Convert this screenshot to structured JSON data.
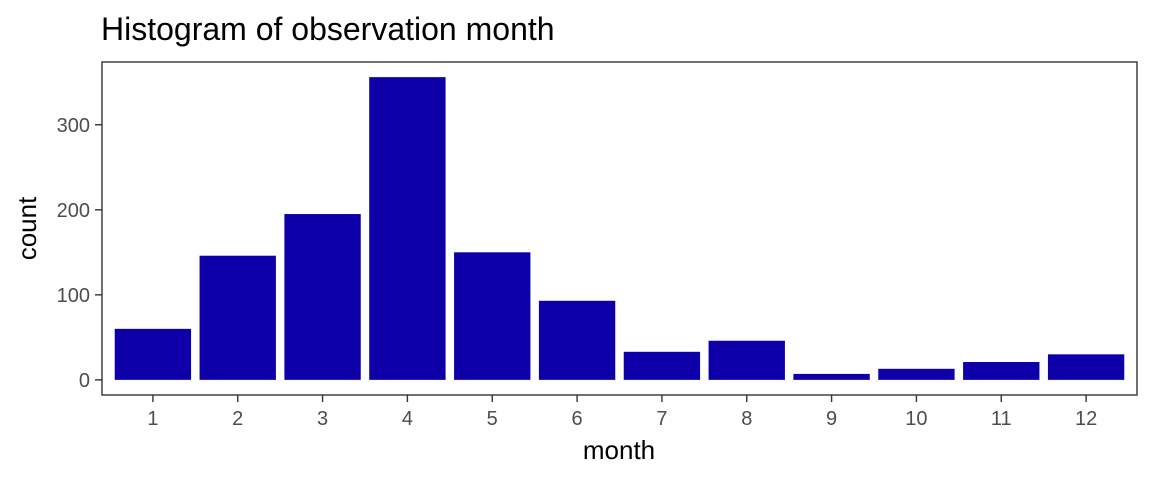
{
  "chart_data": {
    "type": "bar",
    "title": "Histogram of observation month",
    "xlabel": "month",
    "ylabel": "count",
    "categories": [
      "1",
      "2",
      "3",
      "4",
      "5",
      "6",
      "7",
      "8",
      "9",
      "10",
      "11",
      "12"
    ],
    "values": [
      60,
      146,
      195,
      356,
      150,
      93,
      33,
      46,
      7,
      13,
      21,
      30
    ],
    "ylim": [
      -17.8,
      373.8
    ],
    "yticks": [
      0,
      100,
      200,
      300
    ],
    "bar_color": "#0D00A8",
    "background": "#FFFFFF",
    "grid": false,
    "legend": "none"
  }
}
